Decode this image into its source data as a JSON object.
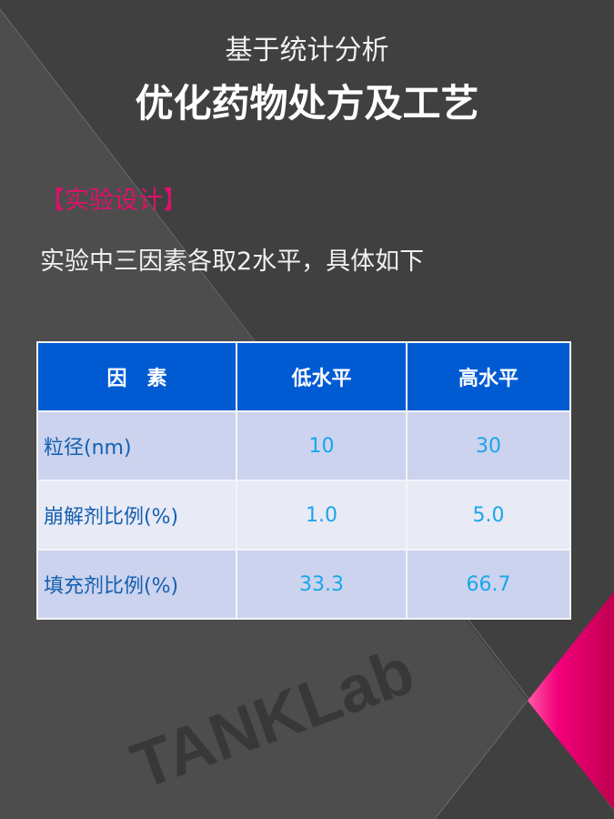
{
  "header": {
    "subtitle": "基于统计分析",
    "title": "优化药物处方及工艺"
  },
  "section": {
    "label": "【实验设计】",
    "intro": "实验中三因素各取2水平，具体如下"
  },
  "table": {
    "headers": [
      "因　素",
      "低水平",
      "高水平"
    ],
    "rows": [
      {
        "factor": "粒径(nm)",
        "low": "10",
        "high": "30"
      },
      {
        "factor": "崩解剂比例(%)",
        "low": "1.0",
        "high": "5.0"
      },
      {
        "factor": "填充剂比例(%)",
        "low": "33.3",
        "high": "66.7"
      }
    ]
  },
  "watermark": "TANKLab",
  "colors": {
    "background": "#404040",
    "accent": "#e0106a",
    "header_blue": "#005bd3",
    "value_blue": "#1aa6ea"
  }
}
